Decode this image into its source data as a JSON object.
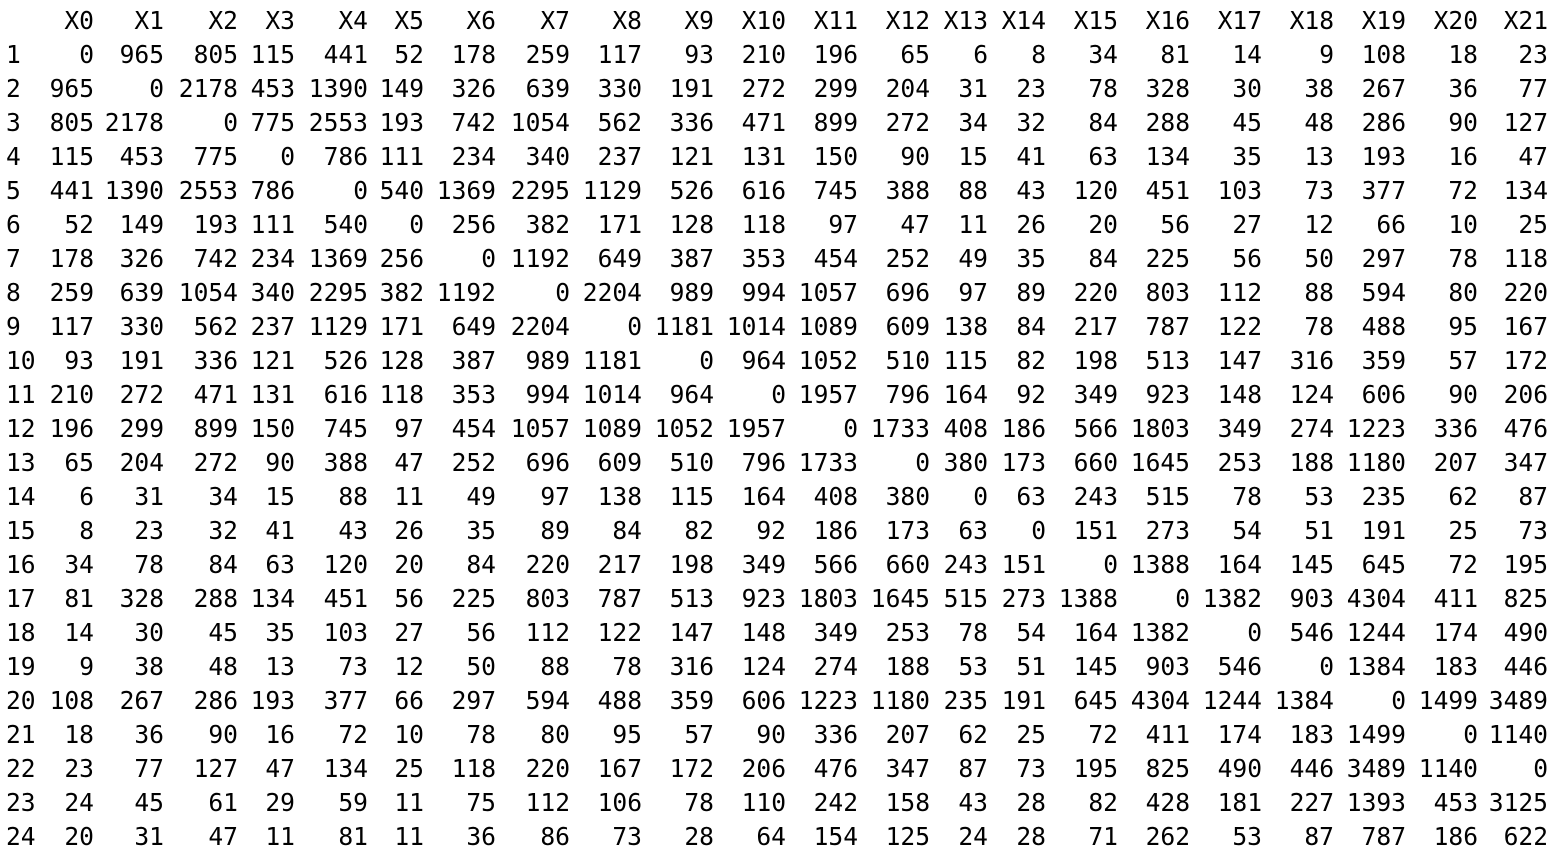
{
  "columns": [
    "X0",
    "X1",
    "X2",
    "X3",
    "X4",
    "X5",
    "X6",
    "X7",
    "X8",
    "X9",
    "X10",
    "X11",
    "X12",
    "X13",
    "X14",
    "X15",
    "X16",
    "X17",
    "X18",
    "X19",
    "X20",
    "X21"
  ],
  "rows": [
    {
      "name": "1",
      "values": [
        "0",
        "965",
        "805",
        "115",
        "441",
        "52",
        "178",
        "259",
        "117",
        "93",
        "210",
        "196",
        "65",
        "6",
        "8",
        "34",
        "81",
        "14",
        "9",
        "108",
        "18",
        "23"
      ]
    },
    {
      "name": "2",
      "values": [
        "965",
        "0",
        "2178",
        "453",
        "1390",
        "149",
        "326",
        "639",
        "330",
        "191",
        "272",
        "299",
        "204",
        "31",
        "23",
        "78",
        "328",
        "30",
        "38",
        "267",
        "36",
        "77"
      ]
    },
    {
      "name": "3",
      "values": [
        "805",
        "2178",
        "0",
        "775",
        "2553",
        "193",
        "742",
        "1054",
        "562",
        "336",
        "471",
        "899",
        "272",
        "34",
        "32",
        "84",
        "288",
        "45",
        "48",
        "286",
        "90",
        "127"
      ]
    },
    {
      "name": "4",
      "values": [
        "115",
        "453",
        "775",
        "0",
        "786",
        "111",
        "234",
        "340",
        "237",
        "121",
        "131",
        "150",
        "90",
        "15",
        "41",
        "63",
        "134",
        "35",
        "13",
        "193",
        "16",
        "47"
      ]
    },
    {
      "name": "5",
      "values": [
        "441",
        "1390",
        "2553",
        "786",
        "0",
        "540",
        "1369",
        "2295",
        "1129",
        "526",
        "616",
        "745",
        "388",
        "88",
        "43",
        "120",
        "451",
        "103",
        "73",
        "377",
        "72",
        "134"
      ]
    },
    {
      "name": "6",
      "values": [
        "52",
        "149",
        "193",
        "111",
        "540",
        "0",
        "256",
        "382",
        "171",
        "128",
        "118",
        "97",
        "47",
        "11",
        "26",
        "20",
        "56",
        "27",
        "12",
        "66",
        "10",
        "25"
      ]
    },
    {
      "name": "7",
      "values": [
        "178",
        "326",
        "742",
        "234",
        "1369",
        "256",
        "0",
        "1192",
        "649",
        "387",
        "353",
        "454",
        "252",
        "49",
        "35",
        "84",
        "225",
        "56",
        "50",
        "297",
        "78",
        "118"
      ]
    },
    {
      "name": "8",
      "values": [
        "259",
        "639",
        "1054",
        "340",
        "2295",
        "382",
        "1192",
        "0",
        "2204",
        "989",
        "994",
        "1057",
        "696",
        "97",
        "89",
        "220",
        "803",
        "112",
        "88",
        "594",
        "80",
        "220"
      ]
    },
    {
      "name": "9",
      "values": [
        "117",
        "330",
        "562",
        "237",
        "1129",
        "171",
        "649",
        "2204",
        "0",
        "1181",
        "1014",
        "1089",
        "609",
        "138",
        "84",
        "217",
        "787",
        "122",
        "78",
        "488",
        "95",
        "167"
      ]
    },
    {
      "name": "10",
      "values": [
        "93",
        "191",
        "336",
        "121",
        "526",
        "128",
        "387",
        "989",
        "1181",
        "0",
        "964",
        "1052",
        "510",
        "115",
        "82",
        "198",
        "513",
        "147",
        "316",
        "359",
        "57",
        "172"
      ]
    },
    {
      "name": "11",
      "values": [
        "210",
        "272",
        "471",
        "131",
        "616",
        "118",
        "353",
        "994",
        "1014",
        "964",
        "0",
        "1957",
        "796",
        "164",
        "92",
        "349",
        "923",
        "148",
        "124",
        "606",
        "90",
        "206"
      ]
    },
    {
      "name": "12",
      "values": [
        "196",
        "299",
        "899",
        "150",
        "745",
        "97",
        "454",
        "1057",
        "1089",
        "1052",
        "1957",
        "0",
        "1733",
        "408",
        "186",
        "566",
        "1803",
        "349",
        "274",
        "1223",
        "336",
        "476"
      ]
    },
    {
      "name": "13",
      "values": [
        "65",
        "204",
        "272",
        "90",
        "388",
        "47",
        "252",
        "696",
        "609",
        "510",
        "796",
        "1733",
        "0",
        "380",
        "173",
        "660",
        "1645",
        "253",
        "188",
        "1180",
        "207",
        "347"
      ]
    },
    {
      "name": "14",
      "values": [
        "6",
        "31",
        "34",
        "15",
        "88",
        "11",
        "49",
        "97",
        "138",
        "115",
        "164",
        "408",
        "380",
        "0",
        "63",
        "243",
        "515",
        "78",
        "53",
        "235",
        "62",
        "87"
      ]
    },
    {
      "name": "15",
      "values": [
        "8",
        "23",
        "32",
        "41",
        "43",
        "26",
        "35",
        "89",
        "84",
        "82",
        "92",
        "186",
        "173",
        "63",
        "0",
        "151",
        "273",
        "54",
        "51",
        "191",
        "25",
        "73"
      ]
    },
    {
      "name": "16",
      "values": [
        "34",
        "78",
        "84",
        "63",
        "120",
        "20",
        "84",
        "220",
        "217",
        "198",
        "349",
        "566",
        "660",
        "243",
        "151",
        "0",
        "1388",
        "164",
        "145",
        "645",
        "72",
        "195"
      ]
    },
    {
      "name": "17",
      "values": [
        "81",
        "328",
        "288",
        "134",
        "451",
        "56",
        "225",
        "803",
        "787",
        "513",
        "923",
        "1803",
        "1645",
        "515",
        "273",
        "1388",
        "0",
        "1382",
        "903",
        "4304",
        "411",
        "825"
      ]
    },
    {
      "name": "18",
      "values": [
        "14",
        "30",
        "45",
        "35",
        "103",
        "27",
        "56",
        "112",
        "122",
        "147",
        "148",
        "349",
        "253",
        "78",
        "54",
        "164",
        "1382",
        "0",
        "546",
        "1244",
        "174",
        "490"
      ]
    },
    {
      "name": "19",
      "values": [
        "9",
        "38",
        "48",
        "13",
        "73",
        "12",
        "50",
        "88",
        "78",
        "316",
        "124",
        "274",
        "188",
        "53",
        "51",
        "145",
        "903",
        "546",
        "0",
        "1384",
        "183",
        "446"
      ]
    },
    {
      "name": "20",
      "values": [
        "108",
        "267",
        "286",
        "193",
        "377",
        "66",
        "297",
        "594",
        "488",
        "359",
        "606",
        "1223",
        "1180",
        "235",
        "191",
        "645",
        "4304",
        "1244",
        "1384",
        "0",
        "1499",
        "3489"
      ]
    },
    {
      "name": "21",
      "values": [
        "18",
        "36",
        "90",
        "16",
        "72",
        "10",
        "78",
        "80",
        "95",
        "57",
        "90",
        "336",
        "207",
        "62",
        "25",
        "72",
        "411",
        "174",
        "183",
        "1499",
        "0",
        "1140"
      ]
    },
    {
      "name": "22",
      "values": [
        "23",
        "77",
        "127",
        "47",
        "134",
        "25",
        "118",
        "220",
        "167",
        "172",
        "206",
        "476",
        "347",
        "87",
        "73",
        "195",
        "825",
        "490",
        "446",
        "3489",
        "1140",
        "0"
      ]
    },
    {
      "name": "23",
      "values": [
        "24",
        "45",
        "61",
        "29",
        "59",
        "11",
        "75",
        "112",
        "106",
        "78",
        "110",
        "242",
        "158",
        "43",
        "28",
        "82",
        "428",
        "181",
        "227",
        "1393",
        "453",
        "3125"
      ]
    },
    {
      "name": "24",
      "values": [
        "20",
        "31",
        "47",
        "11",
        "81",
        "11",
        "36",
        "86",
        "73",
        "28",
        "64",
        "154",
        "125",
        "24",
        "28",
        "71",
        "262",
        "53",
        "87",
        "787",
        "186",
        "622"
      ]
    }
  ]
}
